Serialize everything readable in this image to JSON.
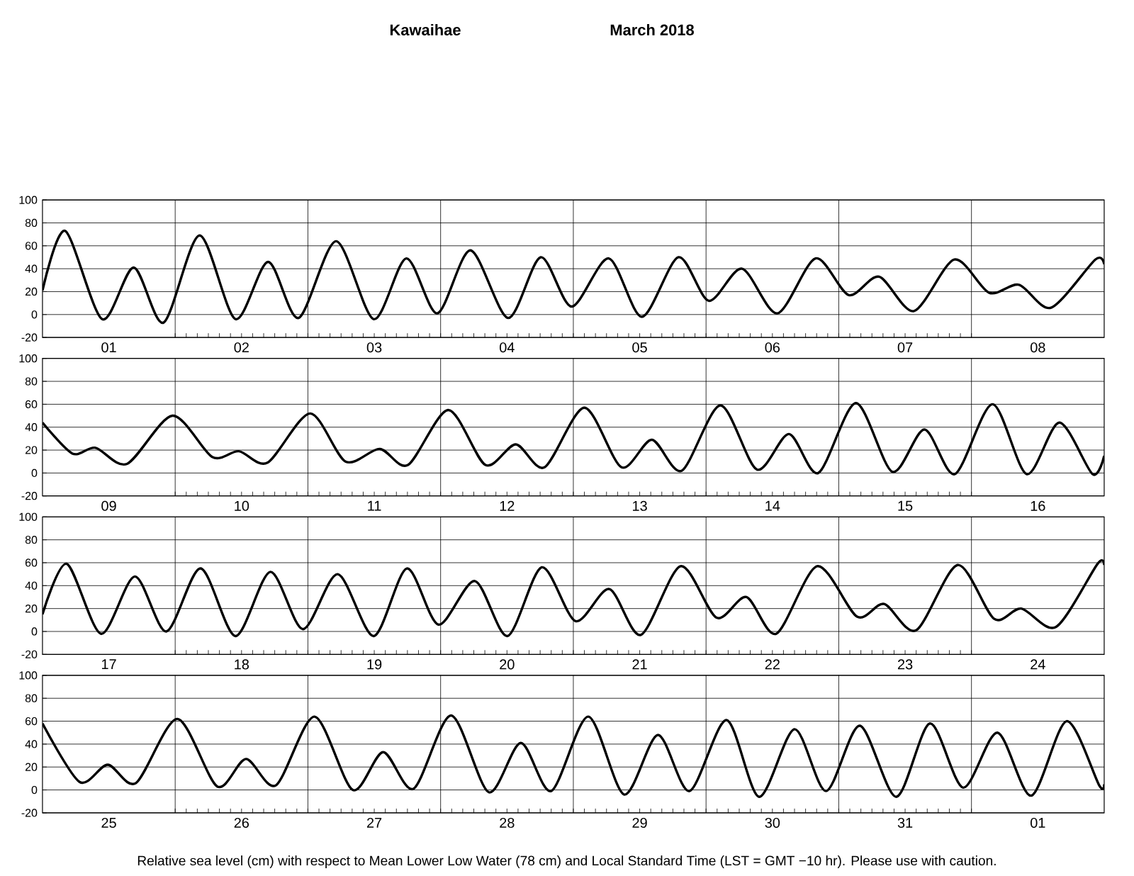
{
  "chart_data": [
    {
      "type": "line",
      "title": "Kawaihae",
      "subtitle": "March   2018",
      "xlim": [
        "2018-03-01T00:00",
        "2018-03-09T00:00"
      ],
      "ylim": [
        -20,
        100
      ],
      "yticks": [
        -20,
        0,
        20,
        40,
        60,
        80,
        100
      ],
      "grid": true,
      "xticks": [
        {
          "value": "2018-03-01T12:00",
          "label": "01"
        },
        {
          "value": "2018-03-02T00:00",
          "label": null
        },
        {
          "value": "2018-03-02T12:00",
          "label": "02"
        },
        {
          "value": "2018-03-03T00:00",
          "label": null
        },
        {
          "value": "2018-03-03T12:00",
          "label": "03"
        },
        {
          "value": "2018-03-04T00:00",
          "label": null
        },
        {
          "value": "2018-03-04T12:00",
          "label": "04"
        },
        {
          "value": "2018-03-05T00:00",
          "label": null
        },
        {
          "value": "2018-03-05T12:00",
          "label": "05"
        },
        {
          "value": "2018-03-06T00:00",
          "label": null
        },
        {
          "value": "2018-03-06T12:00",
          "label": "06"
        },
        {
          "value": "2018-03-07T00:00",
          "label": null
        },
        {
          "value": "2018-03-07T12:00",
          "label": "07"
        },
        {
          "value": "2018-03-08T00:00",
          "label": null
        },
        {
          "value": "2018-03-08T12:00",
          "label": "08"
        }
      ],
      "series": [
        {
          "color": "#000000",
          "x": [
            "2018-03-01T00:00",
            "2018-03-01T04:06",
            "2018-03-01T10:48",
            "2018-03-01T16:30",
            "2018-03-01T21:54",
            "2018-03-02T04:24",
            "2018-03-02T10:54",
            "2018-03-02T16:48",
            "2018-03-02T22:18",
            "2018-03-03T05:06",
            "2018-03-03T11:54",
            "2018-03-03T17:48",
            "2018-03-03T23:24",
            "2018-03-04T05:24",
            "2018-03-04T12:12",
            "2018-03-04T18:06",
            "2018-03-04T23:42",
            "2018-03-05T06:24",
            "2018-03-05T12:24",
            "2018-03-05T19:00",
            "2018-03-06T00:30",
            "2018-03-06T06:30",
            "2018-03-06T12:54",
            "2018-03-06T19:48",
            "2018-03-07T01:48",
            "2018-03-07T07:18",
            "2018-03-07T13:36",
            "2018-03-07T20:54",
            "2018-03-08T03:12",
            "2018-03-08T08:36",
            "2018-03-08T14:24",
            "2018-03-08T22:24",
            "2018-03-09T00:00"
          ],
          "values": [
            21,
            73,
            -4,
            41,
            -7,
            69,
            -4,
            46,
            -3,
            64,
            -4,
            49,
            1,
            56,
            -3,
            50,
            7,
            49,
            -2,
            50,
            12,
            40,
            1,
            49,
            17,
            33,
            3,
            48,
            19,
            26,
            6,
            48,
            44
          ]
        }
      ]
    },
    {
      "type": "line",
      "xlim": [
        "2018-03-09T00:00",
        "2018-03-17T00:00"
      ],
      "ylim": [
        -20,
        100
      ],
      "yticks": [
        -20,
        0,
        20,
        40,
        60,
        80,
        100
      ],
      "grid": true,
      "xticks": [
        {
          "value": "2018-03-09T12:00",
          "label": "09"
        },
        {
          "value": "2018-03-10T00:00",
          "label": null
        },
        {
          "value": "2018-03-10T12:00",
          "label": "10"
        },
        {
          "value": "2018-03-11T00:00",
          "label": null
        },
        {
          "value": "2018-03-11T12:00",
          "label": "11"
        },
        {
          "value": "2018-03-12T00:00",
          "label": null
        },
        {
          "value": "2018-03-12T12:00",
          "label": "12"
        },
        {
          "value": "2018-03-13T00:00",
          "label": null
        },
        {
          "value": "2018-03-13T12:00",
          "label": "13"
        },
        {
          "value": "2018-03-14T00:00",
          "label": null
        },
        {
          "value": "2018-03-14T12:00",
          "label": "14"
        },
        {
          "value": "2018-03-15T00:00",
          "label": null
        },
        {
          "value": "2018-03-15T12:00",
          "label": "15"
        },
        {
          "value": "2018-03-16T00:00",
          "label": null
        },
        {
          "value": "2018-03-16T12:00",
          "label": "16"
        }
      ],
      "series": [
        {
          "color": "#000000",
          "x": [
            "2018-03-09T00:00",
            "2018-03-09T05:24",
            "2018-03-09T09:36",
            "2018-03-09T15:18",
            "2018-03-09T23:30",
            "2018-03-10T06:42",
            "2018-03-10T11:30",
            "2018-03-10T16:42",
            "2018-03-11T00:24",
            "2018-03-11T06:48",
            "2018-03-11T13:00",
            "2018-03-11T18:06",
            "2018-03-12T01:24",
            "2018-03-12T08:06",
            "2018-03-12T13:36",
            "2018-03-12T18:48",
            "2018-03-13T02:00",
            "2018-03-13T08:42",
            "2018-03-13T14:12",
            "2018-03-13T19:36",
            "2018-03-14T02:36",
            "2018-03-14T09:12",
            "2018-03-14T15:00",
            "2018-03-14T20:18",
            "2018-03-15T03:06",
            "2018-03-15T09:42",
            "2018-03-15T15:30",
            "2018-03-15T21:00",
            "2018-03-16T03:48",
            "2018-03-16T10:00",
            "2018-03-16T15:54",
            "2018-03-16T21:54",
            "2018-03-17T00:00"
          ],
          "values": [
            44,
            17,
            22,
            8,
            50,
            14,
            19,
            9,
            52,
            10,
            21,
            7,
            55,
            7,
            25,
            5,
            57,
            5,
            29,
            2,
            59,
            3,
            34,
            0,
            61,
            1,
            38,
            -1,
            60,
            -1,
            44,
            -1,
            15
          ]
        }
      ]
    },
    {
      "type": "line",
      "xlim": [
        "2018-03-17T00:00",
        "2018-03-25T00:00"
      ],
      "ylim": [
        -20,
        100
      ],
      "yticks": [
        -20,
        0,
        20,
        40,
        60,
        80,
        100
      ],
      "grid": true,
      "xticks": [
        {
          "value": "2018-03-17T12:00",
          "label": "17"
        },
        {
          "value": "2018-03-18T00:00",
          "label": null
        },
        {
          "value": "2018-03-18T12:00",
          "label": "18"
        },
        {
          "value": "2018-03-19T00:00",
          "label": null
        },
        {
          "value": "2018-03-19T12:00",
          "label": "19"
        },
        {
          "value": "2018-03-20T00:00",
          "label": null
        },
        {
          "value": "2018-03-20T12:00",
          "label": "20"
        },
        {
          "value": "2018-03-21T00:00",
          "label": null
        },
        {
          "value": "2018-03-21T12:00",
          "label": "21"
        },
        {
          "value": "2018-03-22T00:00",
          "label": null
        },
        {
          "value": "2018-03-22T12:00",
          "label": "22"
        },
        {
          "value": "2018-03-23T00:00",
          "label": null
        },
        {
          "value": "2018-03-23T12:00",
          "label": "23"
        },
        {
          "value": "2018-03-24T00:00",
          "label": null
        },
        {
          "value": "2018-03-24T12:00",
          "label": "24"
        }
      ],
      "series": [
        {
          "color": "#000000",
          "x": [
            "2018-03-17T00:00",
            "2018-03-17T04:24",
            "2018-03-17T10:36",
            "2018-03-17T16:42",
            "2018-03-17T22:24",
            "2018-03-18T04:36",
            "2018-03-18T10:54",
            "2018-03-18T17:12",
            "2018-03-18T23:06",
            "2018-03-19T05:24",
            "2018-03-19T11:54",
            "2018-03-19T17:54",
            "2018-03-19T23:36",
            "2018-03-20T06:12",
            "2018-03-20T12:06",
            "2018-03-20T18:18",
            "2018-03-21T00:24",
            "2018-03-21T06:30",
            "2018-03-21T12:12",
            "2018-03-21T19:24",
            "2018-03-22T01:54",
            "2018-03-22T07:18",
            "2018-03-22T12:42",
            "2018-03-22T20:06",
            "2018-03-23T03:18",
            "2018-03-23T08:12",
            "2018-03-23T14:00",
            "2018-03-23T21:30",
            "2018-03-24T04:06",
            "2018-03-24T09:00",
            "2018-03-24T15:18",
            "2018-03-24T22:48",
            "2018-03-25T00:00"
          ],
          "values": [
            15,
            59,
            -2,
            48,
            0,
            55,
            -4,
            52,
            2,
            50,
            -4,
            55,
            6,
            44,
            -4,
            56,
            9,
            37,
            -3,
            57,
            12,
            30,
            -2,
            57,
            13,
            24,
            1,
            58,
            11,
            20,
            4,
            59,
            58
          ]
        }
      ]
    },
    {
      "type": "line",
      "xlim": [
        "2018-03-25T00:00",
        "2018-04-02T00:00"
      ],
      "ylim": [
        -20,
        100
      ],
      "yticks": [
        -20,
        0,
        20,
        40,
        60,
        80,
        100
      ],
      "grid": true,
      "xticks": [
        {
          "value": "2018-03-25T12:00",
          "label": "25"
        },
        {
          "value": "2018-03-26T00:00",
          "label": null
        },
        {
          "value": "2018-03-26T12:00",
          "label": "26"
        },
        {
          "value": "2018-03-27T00:00",
          "label": null
        },
        {
          "value": "2018-03-27T12:00",
          "label": "27"
        },
        {
          "value": "2018-03-28T00:00",
          "label": null
        },
        {
          "value": "2018-03-28T12:00",
          "label": "28"
        },
        {
          "value": "2018-03-29T00:00",
          "label": null
        },
        {
          "value": "2018-03-29T12:00",
          "label": "29"
        },
        {
          "value": "2018-03-30T00:00",
          "label": null
        },
        {
          "value": "2018-03-30T12:00",
          "label": "30"
        },
        {
          "value": "2018-03-31T00:00",
          "label": null
        },
        {
          "value": "2018-03-31T12:00",
          "label": "31"
        },
        {
          "value": "2018-04-01T00:00",
          "label": null
        },
        {
          "value": "2018-04-01T12:00",
          "label": "01"
        }
      ],
      "annotations": [
        "Relative sea level (cm) with respect to Mean Lower Low Water (78 cm) and Local Standard Time (LST = GMT −10 hr). Please use with caution."
      ],
      "series": [
        {
          "color": "#000000",
          "x": [
            "2018-03-25T00:00",
            "2018-03-25T06:42",
            "2018-03-25T11:48",
            "2018-03-25T16:54",
            "2018-03-26T00:24",
            "2018-03-26T07:36",
            "2018-03-26T12:48",
            "2018-03-26T18:12",
            "2018-03-27T01:12",
            "2018-03-27T08:06",
            "2018-03-27T13:36",
            "2018-03-27T19:06",
            "2018-03-28T01:54",
            "2018-03-28T08:42",
            "2018-03-28T14:30",
            "2018-03-28T20:00",
            "2018-03-29T02:42",
            "2018-03-29T09:12",
            "2018-03-29T15:18",
            "2018-03-29T21:00",
            "2018-03-30T03:42",
            "2018-03-30T09:36",
            "2018-03-30T16:00",
            "2018-03-30T21:42",
            "2018-03-31T03:48",
            "2018-03-31T10:24",
            "2018-03-31T16:30",
            "2018-03-31T22:30",
            "2018-04-01T04:42",
            "2018-04-01T10:48",
            "2018-04-01T17:12",
            "2018-04-01T23:06",
            "2018-04-02T00:00"
          ],
          "values": [
            58,
            7,
            22,
            6,
            62,
            3,
            27,
            4,
            64,
            0,
            33,
            1,
            65,
            -2,
            41,
            -1,
            64,
            -4,
            48,
            -1,
            61,
            -6,
            53,
            -1,
            56,
            -6,
            58,
            2,
            50,
            -5,
            60,
            4,
            5
          ]
        }
      ]
    }
  ]
}
